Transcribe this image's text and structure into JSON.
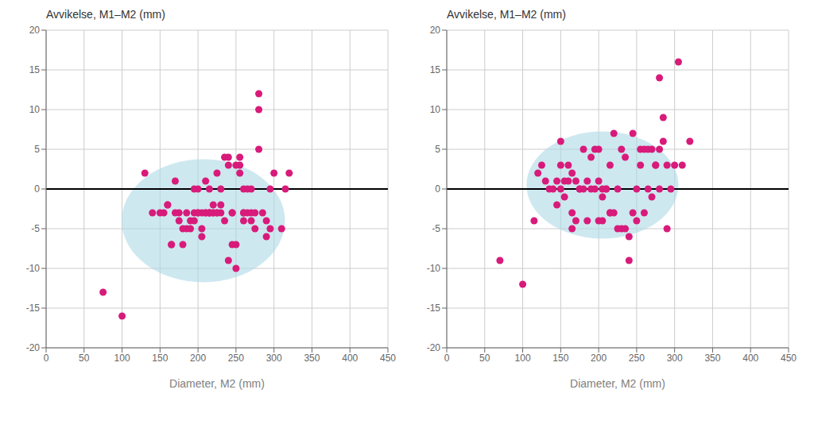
{
  "chart_data": [
    {
      "type": "scatter",
      "title": "Avvikelse, M1–M2 (mm)",
      "xlabel": "Diameter, M2 (mm)",
      "x": [
        75,
        100,
        130,
        140,
        150,
        155,
        160,
        160,
        165,
        165,
        170,
        170,
        175,
        175,
        180,
        180,
        185,
        185,
        190,
        190,
        195,
        195,
        195,
        200,
        200,
        200,
        205,
        205,
        205,
        210,
        210,
        210,
        215,
        215,
        215,
        215,
        220,
        220,
        220,
        225,
        225,
        225,
        230,
        230,
        230,
        235,
        235,
        240,
        240,
        240,
        245,
        245,
        245,
        250,
        250,
        250,
        255,
        255,
        255,
        260,
        260,
        260,
        260,
        265,
        265,
        270,
        270,
        270,
        275,
        275,
        280,
        280,
        280,
        285,
        290,
        290,
        295,
        295,
        300,
        310,
        315,
        320
      ],
      "values": [
        -13,
        -16,
        2,
        -3,
        -3,
        -3,
        -2,
        -2,
        -7,
        -7,
        1,
        -3,
        -3,
        -4,
        -5,
        -7,
        -5,
        -3,
        -5,
        -4,
        -3,
        -4,
        0,
        -3,
        -3,
        0,
        -6,
        -5,
        -3,
        -3,
        -3,
        1,
        -3,
        -3,
        -3,
        0,
        -3,
        -3,
        -2,
        -3,
        -3,
        2,
        -3,
        0,
        -2,
        4,
        -4,
        4,
        3,
        -9,
        -3,
        -3,
        -7,
        3,
        -10,
        -7,
        3,
        2,
        4,
        -3,
        0,
        -4,
        -3,
        -3,
        0,
        -3,
        0,
        -4,
        -3,
        -5,
        5,
        10,
        12,
        -3,
        -4,
        -6,
        0,
        -5,
        2,
        -5,
        0,
        2
      ],
      "color": "#D81B7A",
      "xlim": [
        0,
        450
      ],
      "ylim": [
        -20,
        20
      ],
      "xticks": [
        0,
        50,
        100,
        150,
        200,
        250,
        300,
        350,
        400,
        450
      ],
      "yticks": [
        -20,
        -15,
        -10,
        -5,
        0,
        5,
        10,
        15,
        20
      ],
      "grid": true,
      "ellipse": {
        "cx": 207,
        "cy": -4.0,
        "width": 215,
        "height": 15.5,
        "color": "#ADD8E6"
      },
      "reference_line": {
        "y": 0,
        "color": "#000000"
      }
    },
    {
      "type": "scatter",
      "title": "Avvikelse, M1–M2 (mm)",
      "xlabel": "Diameter, M2 (mm)",
      "x": [
        70,
        100,
        115,
        120,
        125,
        130,
        135,
        140,
        145,
        145,
        150,
        150,
        150,
        155,
        155,
        160,
        160,
        165,
        165,
        165,
        170,
        170,
        175,
        175,
        180,
        180,
        185,
        185,
        190,
        190,
        195,
        195,
        200,
        200,
        200,
        205,
        205,
        205,
        210,
        210,
        215,
        215,
        215,
        220,
        220,
        225,
        225,
        230,
        230,
        235,
        235,
        240,
        240,
        245,
        245,
        250,
        250,
        255,
        255,
        260,
        260,
        265,
        265,
        270,
        270,
        275,
        275,
        280,
        280,
        280,
        285,
        285,
        290,
        290,
        295,
        300,
        305,
        310,
        320
      ],
      "values": [
        -9,
        -12,
        -4,
        2,
        3,
        1,
        0,
        0,
        -2,
        1,
        3,
        0,
        6,
        1,
        -1,
        1,
        3,
        2,
        -3,
        -5,
        1,
        -4,
        0,
        0,
        0,
        5,
        1,
        -4,
        4,
        0,
        5,
        0,
        -4,
        1,
        5,
        -4,
        -1,
        0,
        0,
        0,
        -3,
        -3,
        3,
        -3,
        7,
        -5,
        0,
        -5,
        5,
        -5,
        4,
        -6,
        -9,
        -3,
        7,
        -4,
        0,
        5,
        3,
        5,
        -3,
        5,
        0,
        -1,
        5,
        3,
        3,
        14,
        5,
        0,
        6,
        9,
        3,
        -5,
        0,
        3,
        16,
        3,
        6
      ],
      "color": "#D81B7A",
      "xlim": [
        0,
        450
      ],
      "ylim": [
        -20,
        20
      ],
      "xticks": [
        0,
        50,
        100,
        150,
        200,
        250,
        300,
        350,
        400,
        450
      ],
      "yticks": [
        -20,
        -15,
        -10,
        -5,
        0,
        5,
        10,
        15,
        20
      ],
      "grid": true,
      "ellipse": {
        "cx": 205,
        "cy": 0.5,
        "width": 200,
        "height": 13.5,
        "color": "#ADD8E6"
      },
      "reference_line": {
        "y": 0,
        "color": "#000000"
      }
    }
  ]
}
